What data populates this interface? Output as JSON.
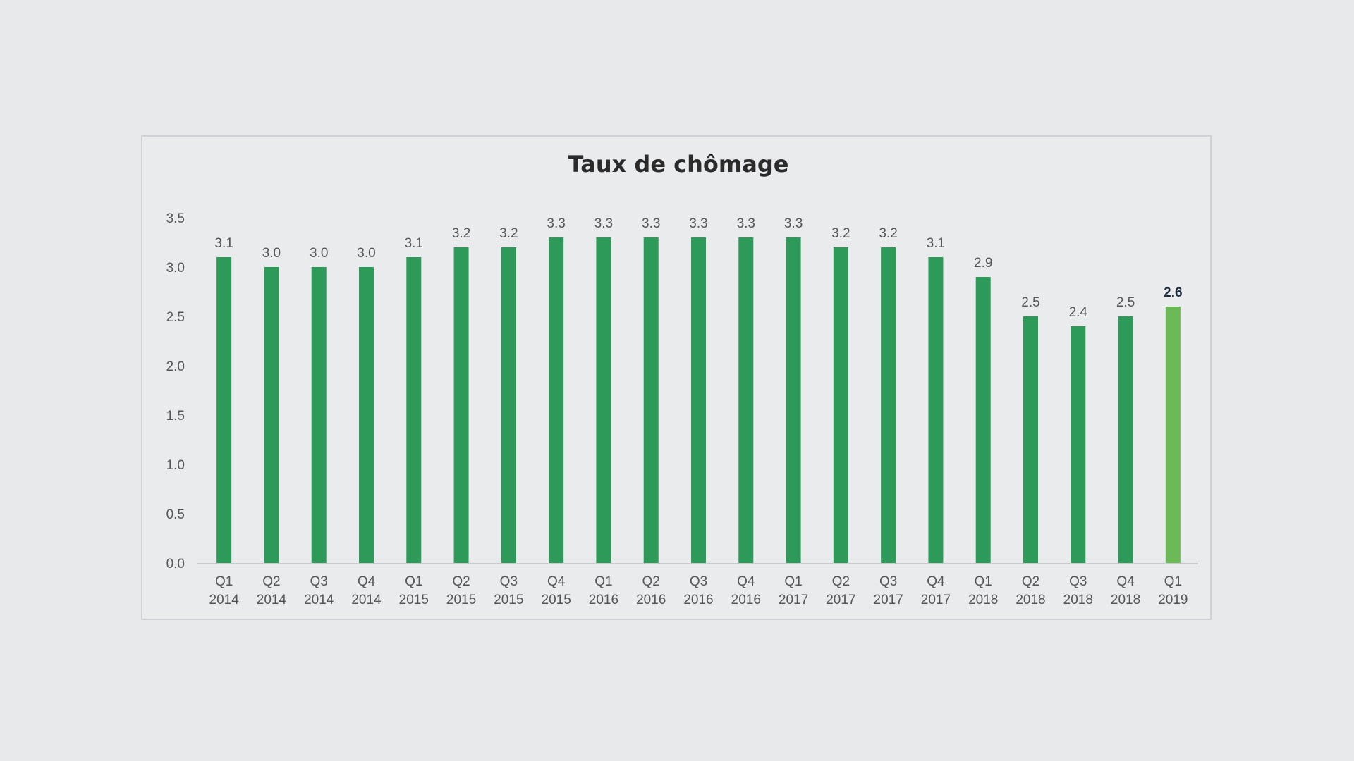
{
  "chart_data": {
    "type": "bar",
    "title": "Taux de chômage",
    "xlabel": "",
    "ylabel": "",
    "ylim": [
      0,
      3.5
    ],
    "yticks": [
      "0.0",
      "0.5",
      "1.0",
      "1.5",
      "2.0",
      "2.5",
      "3.0",
      "3.5"
    ],
    "categories": [
      [
        "Q1",
        "2014"
      ],
      [
        "Q2",
        "2014"
      ],
      [
        "Q3",
        "2014"
      ],
      [
        "Q4",
        "2014"
      ],
      [
        "Q1",
        "2015"
      ],
      [
        "Q2",
        "2015"
      ],
      [
        "Q3",
        "2015"
      ],
      [
        "Q4",
        "2015"
      ],
      [
        "Q1",
        "2016"
      ],
      [
        "Q2",
        "2016"
      ],
      [
        "Q3",
        "2016"
      ],
      [
        "Q4",
        "2016"
      ],
      [
        "Q1",
        "2017"
      ],
      [
        "Q2",
        "2017"
      ],
      [
        "Q3",
        "2017"
      ],
      [
        "Q4",
        "2017"
      ],
      [
        "Q1",
        "2018"
      ],
      [
        "Q2",
        "2018"
      ],
      [
        "Q3",
        "2018"
      ],
      [
        "Q4",
        "2018"
      ],
      [
        "Q1",
        "2019"
      ]
    ],
    "values": [
      3.1,
      3.0,
      3.0,
      3.0,
      3.1,
      3.2,
      3.2,
      3.3,
      3.3,
      3.3,
      3.3,
      3.3,
      3.3,
      3.2,
      3.2,
      3.1,
      2.9,
      2.5,
      2.4,
      2.5,
      2.6
    ],
    "labels": [
      "3.1",
      "3.0",
      "3.0",
      "3.0",
      "3.1",
      "3.2",
      "3.2",
      "3.3",
      "3.3",
      "3.3",
      "3.3",
      "3.3",
      "3.3",
      "3.2",
      "3.2",
      "3.1",
      "2.9",
      "2.5",
      "2.4",
      "2.5",
      "2.6"
    ],
    "highlight_index": 20,
    "colors": {
      "bar": "#2e9a5a",
      "highlight_bar": "#6cba57",
      "axis": "#c9cacc"
    },
    "grid": false,
    "legend": "none"
  }
}
